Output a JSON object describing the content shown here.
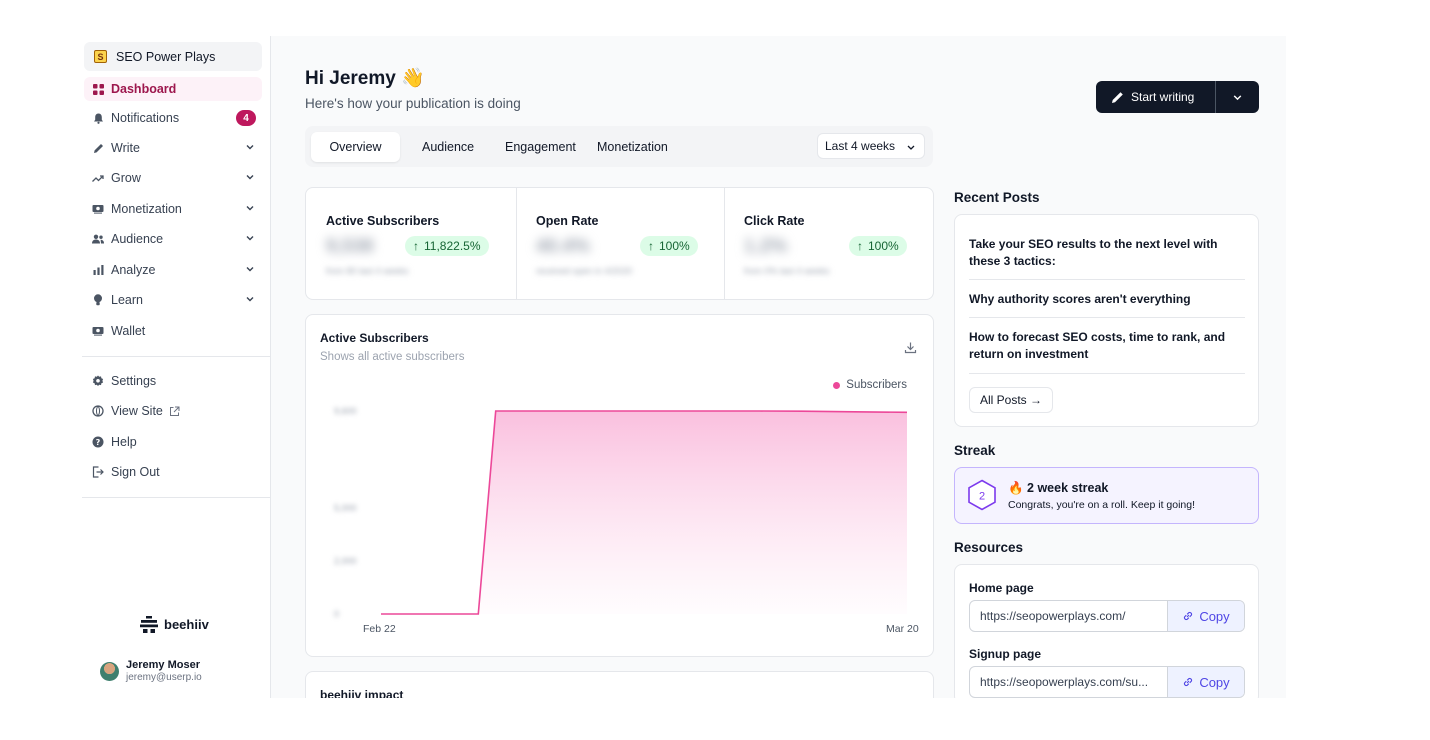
{
  "sidebar": {
    "publication": "SEO Power Plays",
    "publication_initial": "S",
    "items": [
      {
        "label": "Dashboard",
        "icon": "grid-icon"
      },
      {
        "label": "Notifications",
        "icon": "bell-icon",
        "badge": "4"
      },
      {
        "label": "Write",
        "icon": "pencil-icon"
      },
      {
        "label": "Grow",
        "icon": "trend-icon"
      },
      {
        "label": "Monetization",
        "icon": "money-icon"
      },
      {
        "label": "Audience",
        "icon": "users-icon"
      },
      {
        "label": "Analyze",
        "icon": "bar-chart-icon"
      },
      {
        "label": "Learn",
        "icon": "bulb-icon"
      },
      {
        "label": "Wallet",
        "icon": "wallet-icon"
      }
    ],
    "secondary": [
      {
        "label": "Settings",
        "icon": "gear-icon"
      },
      {
        "label": "View Site",
        "icon": "globe-icon"
      },
      {
        "label": "Help",
        "icon": "help-icon"
      },
      {
        "label": "Sign Out",
        "icon": "sign-out-icon"
      }
    ],
    "brand": "beehiiv",
    "user": {
      "name": "Jeremy Moser",
      "email": "jeremy@userp.io"
    }
  },
  "header": {
    "greeting": "Hi Jeremy 👋",
    "subtitle": "Here's how your publication is doing",
    "start_writing": "Start writing"
  },
  "tabs": [
    "Overview",
    "Audience",
    "Engagement",
    "Monetization"
  ],
  "range": "Last 4 weeks",
  "stats": [
    {
      "title": "Active Subscribers",
      "value": "9,538",
      "delta": "11,822.5%",
      "note": "from 80 last 4 weeks"
    },
    {
      "title": "Open Rate",
      "value": "40.4%",
      "delta": "100%",
      "note": "received open in 4/2020"
    },
    {
      "title": "Click Rate",
      "value": "1.2%",
      "delta": "100%",
      "note": "from 0% last 4 weeks"
    }
  ],
  "chart_card": {
    "title": "Active Subscribers",
    "subtitle": "Shows all active subscribers",
    "legend": "Subscribers",
    "accent": "#ec4899"
  },
  "chart_data": {
    "type": "area",
    "x": [
      "Feb 22",
      "",
      "",
      "",
      "",
      "",
      "",
      "",
      "",
      "",
      "Mar 20"
    ],
    "series": [
      {
        "name": "Subscribers",
        "values": [
          0,
          0,
          0,
          9600,
          9600,
          9600,
          9600,
          9600,
          9590,
          9560,
          9538
        ]
      }
    ],
    "xlabel": "",
    "ylabel": "",
    "yticks": [
      "0",
      "2,000",
      "5,000",
      "9,600"
    ],
    "ylim": [
      0,
      9600
    ],
    "grid": false,
    "legend_placement": "top-right"
  },
  "impact_title": "beehiiv impact",
  "recent": {
    "heading": "Recent Posts",
    "posts": [
      "Take your SEO results to the next level with these 3 tactics:",
      "Why authority scores aren't everything",
      "How to forecast SEO costs, time to rank, and return on investment"
    ],
    "all_posts": "All Posts →"
  },
  "streak": {
    "heading": "Streak",
    "count": "2",
    "title": "🔥 2 week streak",
    "subtitle": "Congrats, you're on a roll. Keep it going!"
  },
  "resources": {
    "heading": "Resources",
    "items": [
      {
        "label": "Home page",
        "url": "https://seopowerplays.com/",
        "action": "Copy"
      },
      {
        "label": "Signup page",
        "url": "https://seopowerplays.com/su...",
        "action": "Copy"
      }
    ]
  }
}
